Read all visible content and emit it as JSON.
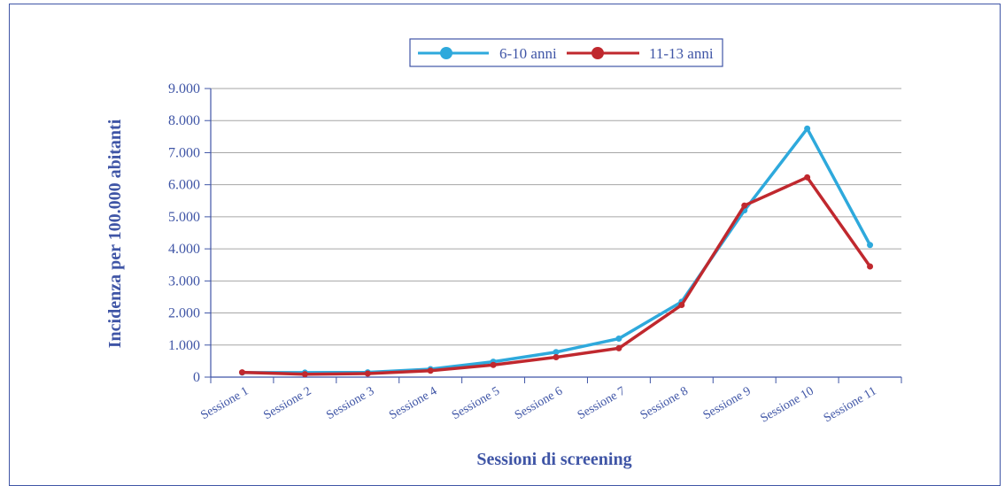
{
  "chart_data": {
    "type": "line",
    "categories": [
      "Sessione 1",
      "Sessione 2",
      "Sessione 3",
      "Sessione 4",
      "Sessione 5",
      "Sessione 6",
      "Sessione 7",
      "Sessione 8",
      "Sessione 9",
      "Sessione 10",
      "Sessione 11"
    ],
    "series": [
      {
        "name": "6-10 anni",
        "color": "#2ea9dc",
        "values": [
          140,
          140,
          150,
          250,
          480,
          780,
          1200,
          2350,
          5200,
          7750,
          4120
        ]
      },
      {
        "name": "11-13 anni",
        "color": "#c0282e",
        "values": [
          150,
          90,
          110,
          200,
          380,
          620,
          900,
          2250,
          5350,
          6230,
          3450
        ]
      }
    ],
    "y_ticks": [
      "0",
      "1.000",
      "2.000",
      "3.000",
      "4.000",
      "5.000",
      "6.000",
      "7.000",
      "8.000",
      "9.000"
    ],
    "ylim": [
      0,
      9000
    ],
    "xlabel": "Sessioni di screening",
    "ylabel": "Incidenza per 100.000 abitanti",
    "grid": true,
    "legend_position": "top",
    "axis_color": "#3f55a6",
    "grid_color": "#a6a6a6"
  }
}
